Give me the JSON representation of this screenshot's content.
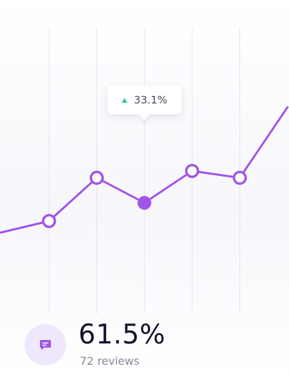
{
  "colors": {
    "line": "#a055e6",
    "grid": "#e6e4ee",
    "tooltip_arrow": "#2cc987",
    "icon_bg": "#efe7fb",
    "icon": "#9b57e3"
  },
  "chart_data": {
    "type": "line",
    "title": "",
    "xlabel": "",
    "ylabel": "",
    "grid": "vertical",
    "x": [
      0,
      1,
      2,
      3,
      4,
      5,
      6
    ],
    "y_approx": [
      10,
      15,
      34,
      23,
      37,
      34,
      65
    ],
    "highlighted_index": 3,
    "ylim": [
      0,
      100
    ]
  },
  "tooltip": {
    "value": "33.1%",
    "trend_icon": "up-triangle-icon"
  },
  "summary": {
    "icon": "chat-message-icon",
    "value": "61.5%",
    "caption": "72 reviews"
  }
}
